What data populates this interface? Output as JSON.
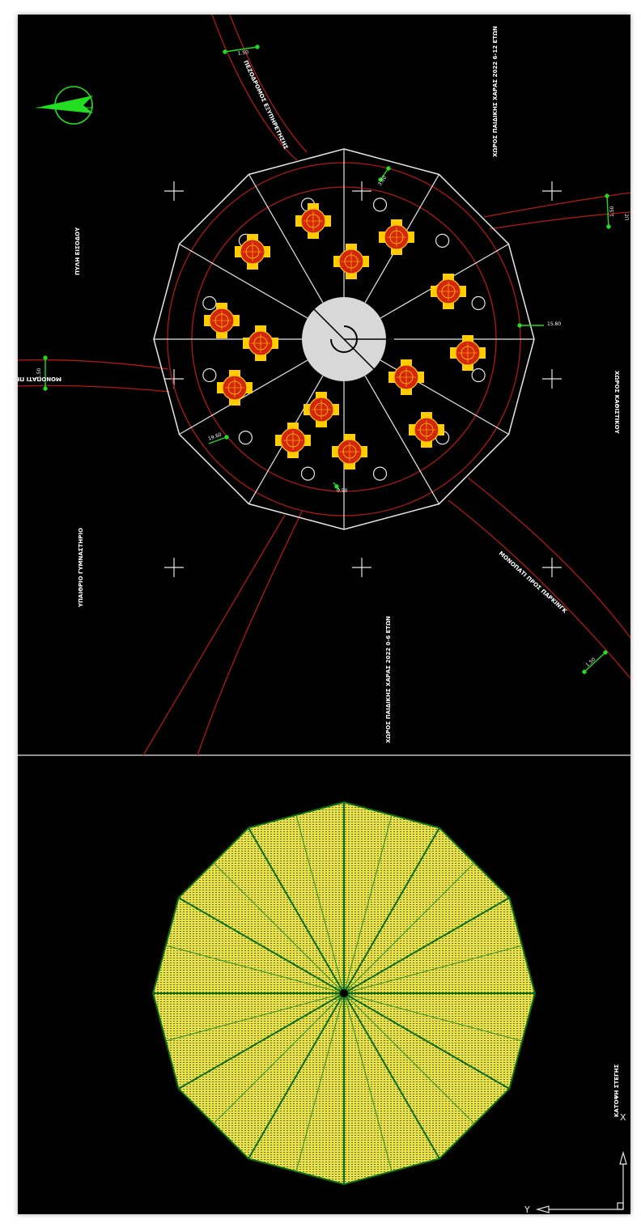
{
  "colors": {
    "background": "#000000",
    "outline": "#e6e6e6",
    "boundary": "#b01818",
    "tree_outer": "#ffcc00",
    "tree_inner": "#d4260c",
    "dimension": "#22dd22",
    "roof_fill": "#e8e24a",
    "roof_rib": "#0b6b1f"
  },
  "plan": {
    "labels": {
      "play_area_top": "ΧΩΡΟΣ ΠΑΙΔΙΚΗΣ ΧΑΡΑΣ 2022 6-12 ΕΤΩΝ",
      "path_top": "ΠΕΖΟΔΡΟΜΟΣ ΕΞΥΠΗΡΕΤΗΣΗΣ",
      "entrance": "ΠΥΛΗ ΕΙΣΟΔΟΥ",
      "path_left": "ΜΟΝΟΠΑΤΙ ΠΡΟΣ ΓΥΜΝΑΣΤΗΡΙΟ",
      "gym": "ΥΠΑΙΘΡΙΟ ΓΥΜΝΑΣΤΗΡΙΟ",
      "play_area_bottom": "ΧΩΡΟΣ ΠΑΙΔΙΚΗΣ ΧΑΡΑΣ 2022 0-6 ΕΤΩΝ",
      "path_bottom": "ΜΟΝΟΠΑΤΙ ΠΡΟΣ ΠΑΡΚΙΝΓΚ",
      "sitting_area": "ΧΩΡΟΣ ΚΑΘΙΣΤΙΚΟΥ"
    },
    "dimensions": {
      "path_top_width": "1.50",
      "path_right_width": "1.50",
      "path_left_width": "1.50",
      "path_bottom_width": "1.50",
      "radius": "15.80",
      "edge_top": "3.00",
      "edge_left": "19.60",
      "edge_bottom": "0.50",
      "right_tag": "2Π"
    }
  },
  "roof": {
    "label": "ΚΑΤΟΨΗ ΣΤΕΓΗΣ"
  },
  "ucs_icon": {
    "x_axis": "X",
    "y_axis": "Y"
  }
}
